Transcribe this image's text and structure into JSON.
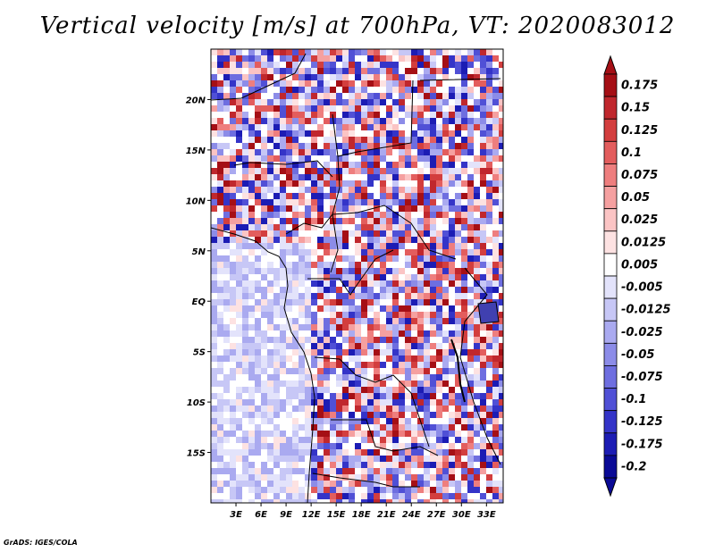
{
  "title": "Vertical velocity [m/s] at 700hPa, VT: 2020083012",
  "footer": "GrADS: IGES/COLA",
  "map": {
    "lon_range": [
      0,
      35
    ],
    "lat_range": [
      -20,
      25
    ],
    "lat_labels": [
      "20N",
      "15N",
      "10N",
      "5N",
      "EQ",
      "5S",
      "10S",
      "15S"
    ],
    "lat_values": [
      20,
      15,
      10,
      5,
      0,
      -5,
      -10,
      -15
    ],
    "lon_labels": [
      "3E",
      "6E",
      "9E",
      "12E",
      "15E",
      "18E",
      "21E",
      "24E",
      "27E",
      "30E",
      "33E"
    ],
    "lon_values": [
      3,
      6,
      9,
      12,
      15,
      18,
      21,
      24,
      27,
      30,
      33
    ]
  },
  "colorbar": {
    "levels": [
      "0.175",
      "0.15",
      "0.125",
      "0.1",
      "0.075",
      "0.05",
      "0.025",
      "0.0125",
      "0.005",
      "-0.005",
      "-0.0125",
      "-0.025",
      "-0.05",
      "-0.075",
      "-0.1",
      "-0.125",
      "-0.175",
      "-0.2"
    ],
    "colors": [
      "#a50f15",
      "#c0272d",
      "#d33e3e",
      "#e35d5d",
      "#ee7e7e",
      "#f5a0a0",
      "#fbc4c4",
      "#fde2e2",
      "#ffffff",
      "#e3e3fb",
      "#c7c7f6",
      "#aaaaf0",
      "#8c8ce8",
      "#6e6ee0",
      "#5050d6",
      "#3434c8",
      "#1c1cb4",
      "#0a0a96"
    ]
  }
}
